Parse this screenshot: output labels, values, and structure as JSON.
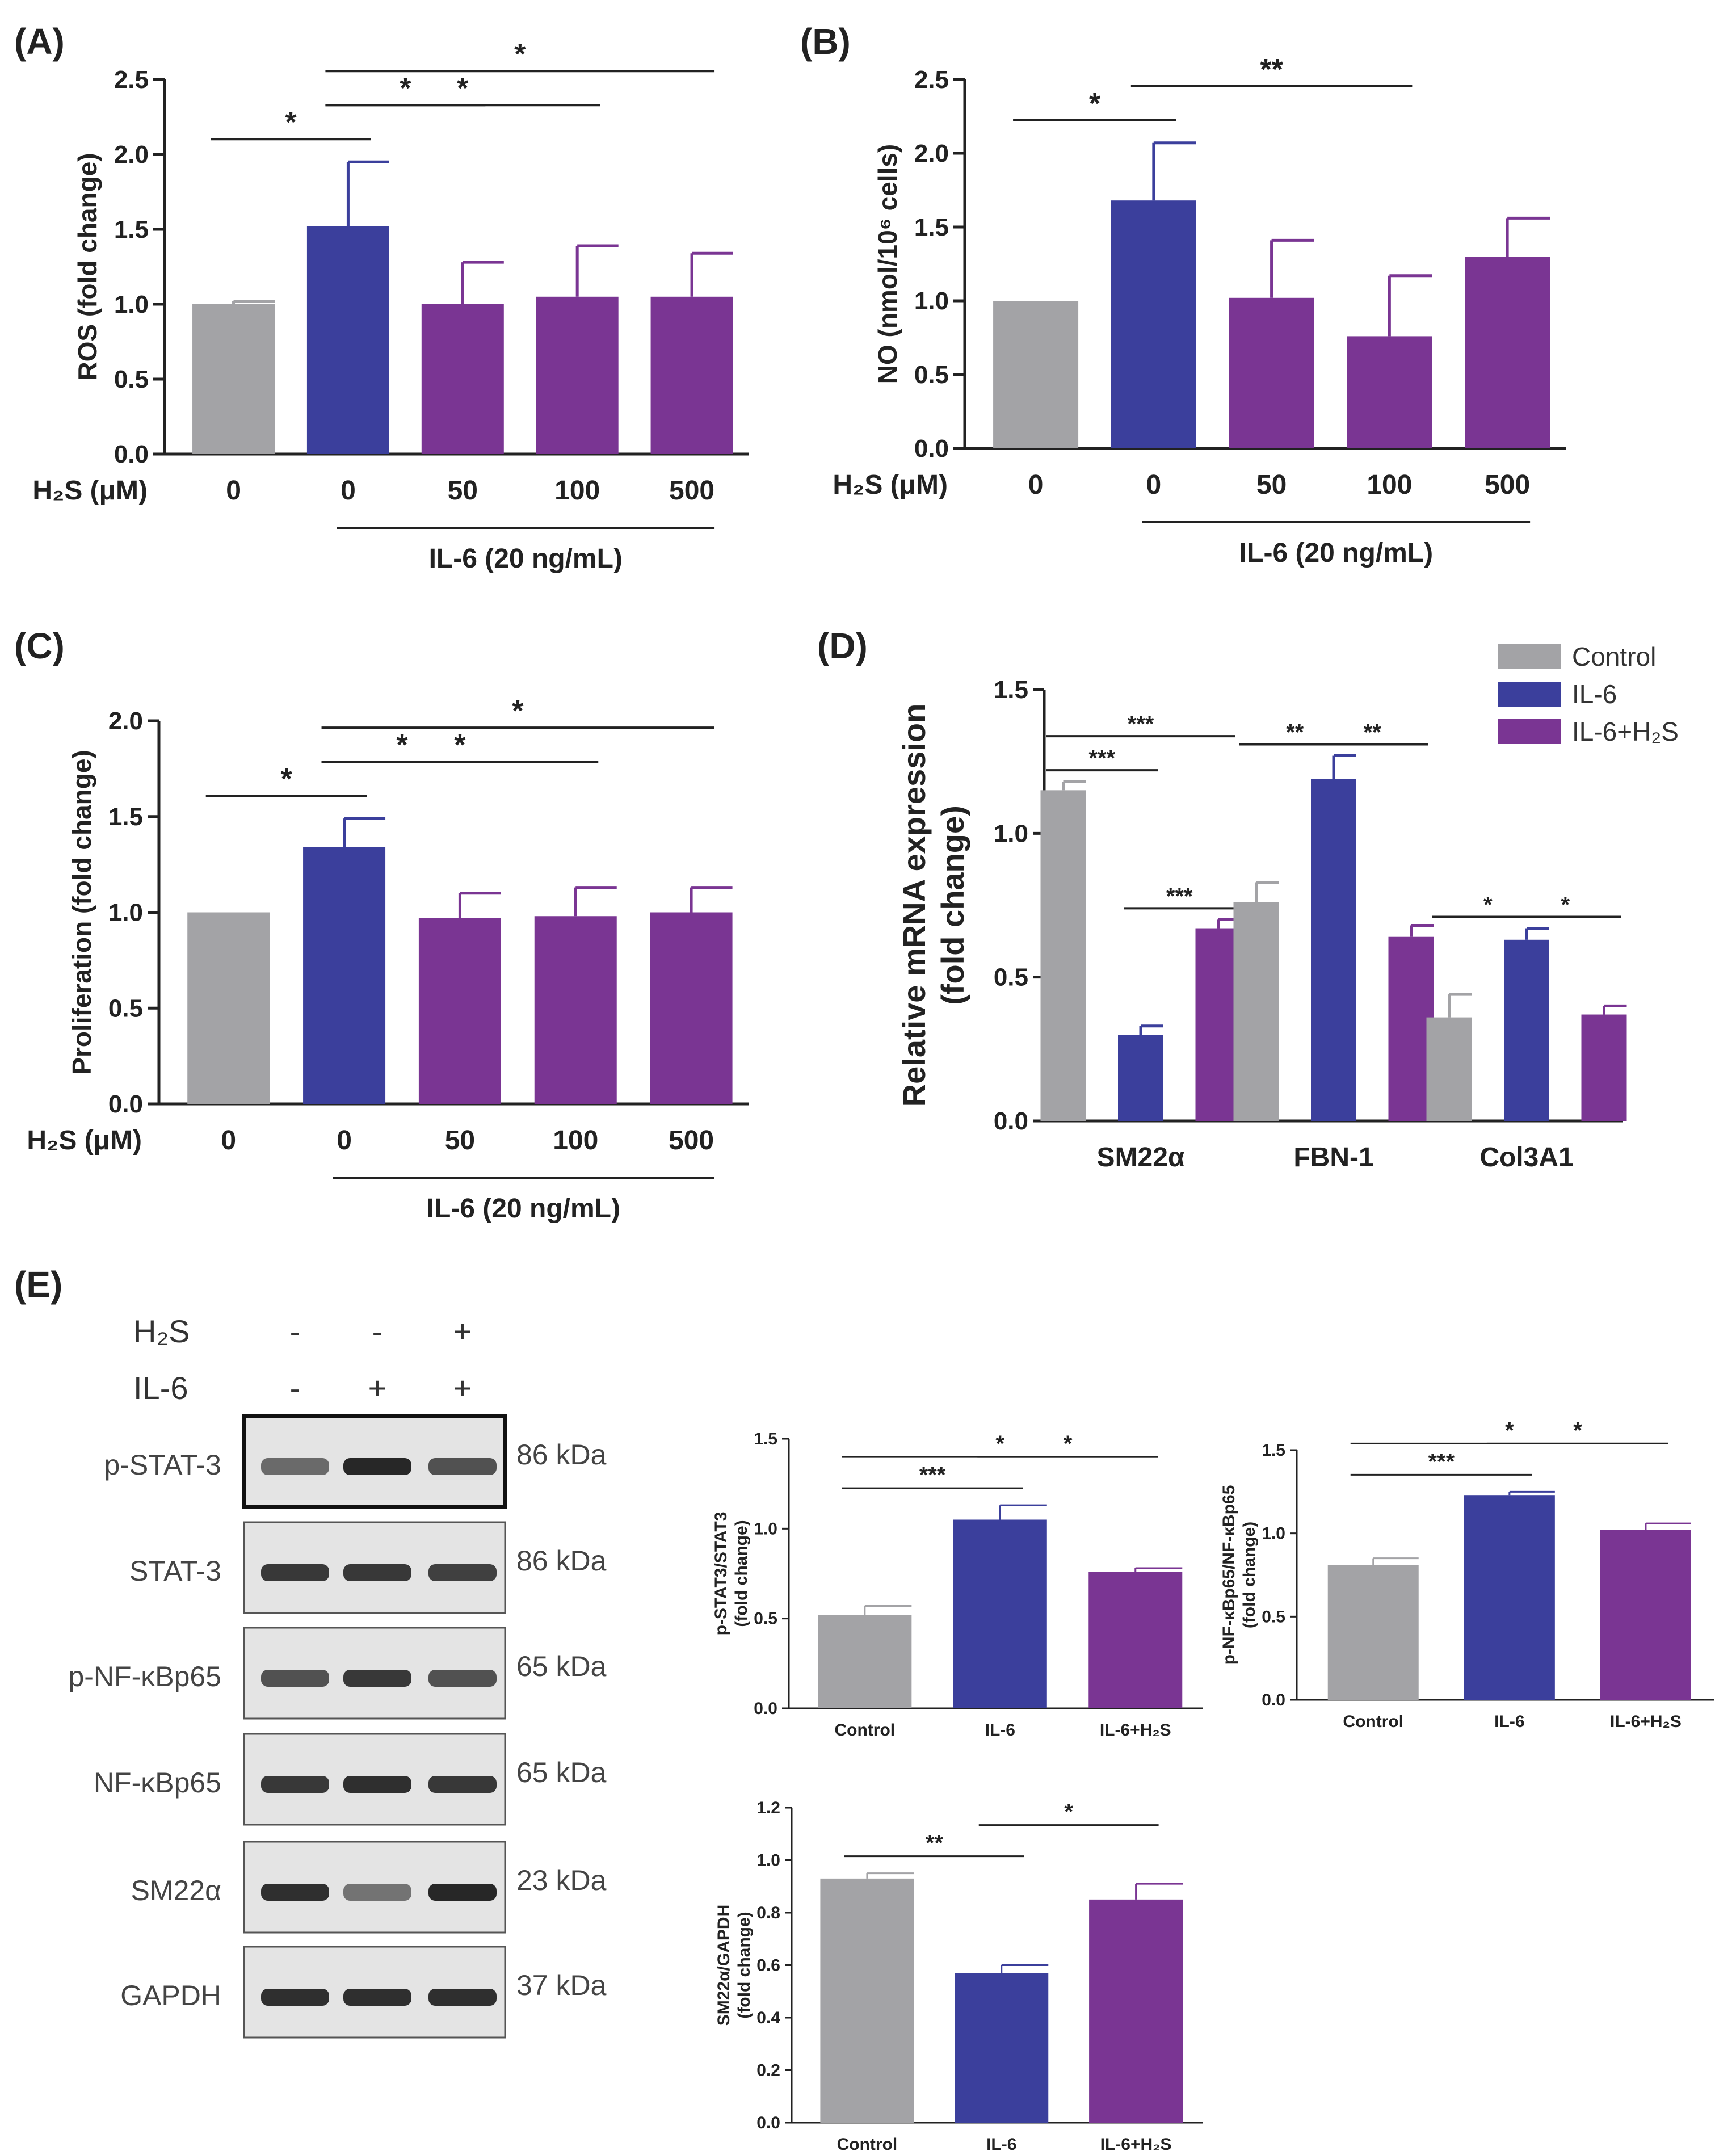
{
  "colors": {
    "control": "#a3a3a6",
    "il6": "#3b3f9c",
    "il6h2s": "#7a3593"
  },
  "chart_data": [
    {
      "id": "A",
      "type": "bar",
      "panel_letter": "(A)",
      "ylabel": "ROS (fold change)",
      "ylim": [
        0,
        2.5
      ],
      "yticks": [
        "0.0",
        "0.5",
        "1.0",
        "1.5",
        "2.0",
        "2.5"
      ],
      "x_prefix": "H₂S (μM)",
      "categories": [
        "0",
        "0",
        "50",
        "100",
        "500"
      ],
      "values": [
        1.0,
        1.52,
        1.0,
        1.05,
        1.05
      ],
      "errors": [
        0.02,
        0.43,
        0.28,
        0.34,
        0.29
      ],
      "group_label": "IL-6 (20 ng/mL)",
      "significance": [
        {
          "from": 0,
          "to": 1,
          "label": "*"
        },
        {
          "from": 1,
          "to": 2,
          "label": "*"
        },
        {
          "from": 1,
          "to": 3,
          "label": "*"
        },
        {
          "from": 1,
          "to": 4,
          "label": "*"
        }
      ]
    },
    {
      "id": "B",
      "type": "bar",
      "panel_letter": "(B)",
      "ylabel": "NO (nmol/10⁶ cells)",
      "ylim": [
        0,
        2.5
      ],
      "yticks": [
        "0.0",
        "0.5",
        "1.0",
        "1.5",
        "2.0",
        "2.5"
      ],
      "x_prefix": "H₂S (μM)",
      "categories": [
        "0",
        "0",
        "50",
        "100",
        "500"
      ],
      "values": [
        1.0,
        1.68,
        1.02,
        0.76,
        1.3
      ],
      "errors": [
        0.0,
        0.39,
        0.39,
        0.41,
        0.26
      ],
      "group_label": "IL-6 (20 ng/mL)",
      "significance": [
        {
          "from": 0,
          "to": 1,
          "label": "*"
        },
        {
          "from": 1,
          "to": 3,
          "label": "**"
        }
      ]
    },
    {
      "id": "C",
      "type": "bar",
      "panel_letter": "(C)",
      "ylabel": "Proliferation (fold change)",
      "ylim": [
        0,
        2.0
      ],
      "yticks": [
        "0.0",
        "0.5",
        "1.0",
        "1.5",
        "2.0"
      ],
      "x_prefix": "H₂S (μM)",
      "categories": [
        "0",
        "0",
        "50",
        "100",
        "500"
      ],
      "values": [
        1.0,
        1.34,
        0.97,
        0.98,
        1.0
      ],
      "errors": [
        0.0,
        0.15,
        0.13,
        0.15,
        0.13
      ],
      "group_label": "IL-6 (20 ng/mL)",
      "significance": [
        {
          "from": 0,
          "to": 1,
          "label": "*"
        },
        {
          "from": 1,
          "to": 2,
          "label": "*"
        },
        {
          "from": 1,
          "to": 3,
          "label": "*"
        },
        {
          "from": 1,
          "to": 4,
          "label": "*"
        }
      ]
    },
    {
      "id": "D",
      "type": "bar",
      "panel_letter": "(D)",
      "ylabel": "Relative mRNA expression",
      "ylabel2": "(fold change)",
      "ylim": [
        0,
        1.5
      ],
      "yticks": [
        "0.0",
        "0.5",
        "1.0",
        "1.5"
      ],
      "categories": [
        "SM22α",
        "FBN-1",
        "Col3A1"
      ],
      "legend": [
        "Control",
        "IL-6",
        "IL-6+H₂S"
      ],
      "series": [
        {
          "name": "Control",
          "values": [
            1.15,
            0.76,
            0.36
          ],
          "errors": [
            0.03,
            0.07,
            0.08
          ]
        },
        {
          "name": "IL-6",
          "values": [
            0.3,
            1.19,
            0.63
          ],
          "errors": [
            0.03,
            0.08,
            0.04
          ]
        },
        {
          "name": "IL-6+H₂S",
          "values": [
            0.67,
            0.64,
            0.37
          ],
          "errors": [
            0.03,
            0.04,
            0.03
          ]
        }
      ],
      "significance": [
        {
          "group": 0,
          "from": 0,
          "to": 1,
          "label": "***"
        },
        {
          "group": 0,
          "from": 0,
          "to": 2,
          "label": "***"
        },
        {
          "group": 0,
          "from": 1,
          "to": 2,
          "label": "***"
        },
        {
          "group": 1,
          "from": 0,
          "to": 1,
          "label": "**"
        },
        {
          "group": 1,
          "from": 1,
          "to": 2,
          "label": "**"
        },
        {
          "group": 2,
          "from": 0,
          "to": 1,
          "label": "*"
        },
        {
          "group": 2,
          "from": 1,
          "to": 2,
          "label": "*"
        }
      ]
    },
    {
      "id": "E1",
      "type": "bar",
      "ylabel": "p-STAT3/STAT3",
      "ylabel2": "(fold change)",
      "ylim": [
        0,
        1.5
      ],
      "yticks": [
        "0.0",
        "0.5",
        "1.0",
        "1.5"
      ],
      "categories": [
        "Control",
        "IL-6",
        "IL-6+H₂S"
      ],
      "values": [
        0.52,
        1.05,
        0.76
      ],
      "errors": [
        0.05,
        0.08,
        0.02
      ],
      "significance": [
        {
          "from": 0,
          "to": 1,
          "label": "***"
        },
        {
          "from": 1,
          "to": 2,
          "label": "*"
        },
        {
          "from": 0,
          "to": 2,
          "label": "*"
        }
      ]
    },
    {
      "id": "E2",
      "type": "bar",
      "ylabel": "p-NF-κBp65/NF-κBp65",
      "ylabel2": "(fold change)",
      "ylim": [
        0,
        1.5
      ],
      "yticks": [
        "0.0",
        "0.5",
        "1.0",
        "1.5"
      ],
      "categories": [
        "Control",
        "IL-6",
        "IL-6+H₂S"
      ],
      "values": [
        0.81,
        1.23,
        1.02
      ],
      "errors": [
        0.04,
        0.02,
        0.04
      ],
      "significance": [
        {
          "from": 0,
          "to": 1,
          "label": "***"
        },
        {
          "from": 1,
          "to": 2,
          "label": "*"
        },
        {
          "from": 0,
          "to": 2,
          "label": "*"
        }
      ]
    },
    {
      "id": "E3",
      "type": "bar",
      "ylabel": "SM22α/GAPDH",
      "ylabel2": "(fold change)",
      "ylim": [
        0,
        1.2
      ],
      "yticks": [
        "0.0",
        "0.2",
        "0.4",
        "0.6",
        "0.8",
        "1.0",
        "1.2"
      ],
      "categories": [
        "Control",
        "IL-6",
        "IL-6+H₂S"
      ],
      "values": [
        0.93,
        0.57,
        0.85
      ],
      "errors": [
        0.02,
        0.03,
        0.06
      ],
      "significance": [
        {
          "from": 0,
          "to": 1,
          "label": "**"
        },
        {
          "from": 1,
          "to": 2,
          "label": "*"
        }
      ]
    }
  ],
  "western_blot": {
    "panel_letter": "(E)",
    "treatments": [
      {
        "name": "H₂S",
        "signs": [
          "-",
          "-",
          "+"
        ]
      },
      {
        "name": "IL-6",
        "signs": [
          "-",
          "+",
          "+"
        ]
      }
    ],
    "blots": [
      {
        "protein": "p-STAT-3",
        "kda": "86 kDa",
        "intensity": [
          0.55,
          0.95,
          0.7
        ]
      },
      {
        "protein": "STAT-3",
        "kda": "86 kDa",
        "intensity": [
          0.85,
          0.85,
          0.8
        ]
      },
      {
        "protein": "p-NF-κBp65",
        "kda": "65 kDa",
        "intensity": [
          0.7,
          0.85,
          0.7
        ]
      },
      {
        "protein": "NF-κBp65",
        "kda": "65 kDa",
        "intensity": [
          0.85,
          0.9,
          0.85
        ]
      },
      {
        "protein": "SM22α",
        "kda": "23 kDa",
        "intensity": [
          0.9,
          0.5,
          0.95
        ]
      },
      {
        "protein": "GAPDH",
        "kda": "37 kDa",
        "intensity": [
          0.9,
          0.9,
          0.9
        ]
      }
    ]
  }
}
